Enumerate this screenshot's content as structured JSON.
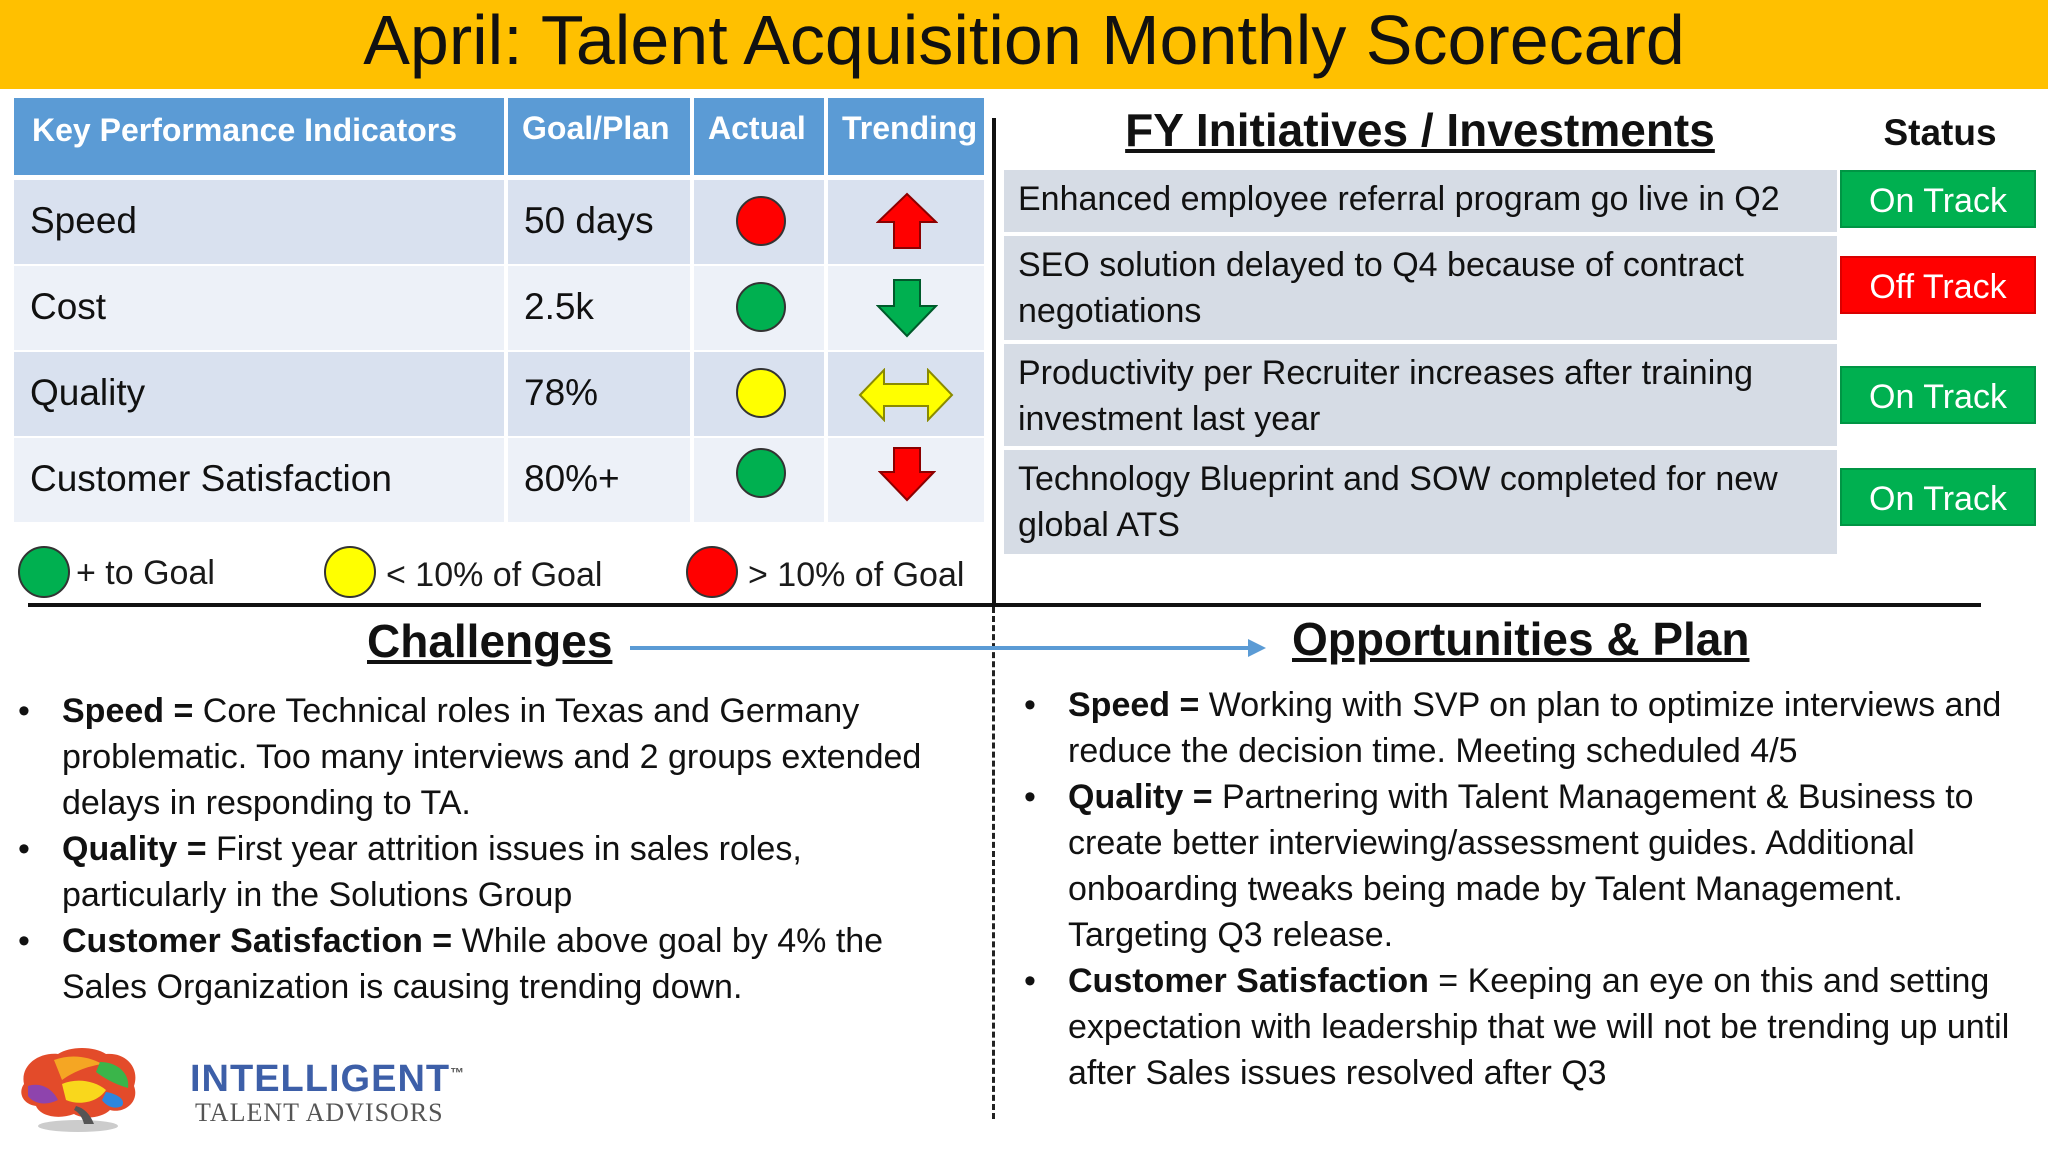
{
  "title": "April: Talent Acquisition Monthly Scorecard",
  "colors": {
    "title_bg": "#ffc000",
    "header_blue": "#5b9bd5",
    "row_light": "#dae3f3",
    "on_track": "#00b050",
    "off_track": "#ff0000",
    "green": "#00b050",
    "yellow": "#ffff00",
    "red": "#ff0000"
  },
  "kpi": {
    "headers": {
      "indicator": "Key Performance Indicators",
      "goal": "Goal/Plan",
      "actual": "Actual",
      "trending": "Trending"
    },
    "rows": [
      {
        "name": "Speed",
        "goal": "50 days",
        "actual": "red",
        "trending": "up-arrow-icon"
      },
      {
        "name": "Cost",
        "goal": "2.5k",
        "actual": "green",
        "trending": "down-arrow-icon"
      },
      {
        "name": "Quality",
        "goal": "78%",
        "actual": "yellow",
        "trending": "left-right-arrow-icon"
      },
      {
        "name": "Customer Satisfaction",
        "goal": "80%+",
        "actual": "green",
        "trending": "down-arrow-icon"
      }
    ]
  },
  "legend": [
    {
      "color": "green",
      "label": "+ to Goal"
    },
    {
      "color": "yellow",
      "label": "< 10% of Goal"
    },
    {
      "color": "red",
      "label": "> 10% of Goal"
    }
  ],
  "initiatives": {
    "title": "FY Initiatives / Investments",
    "status_header": "Status",
    "items": [
      {
        "text": "Enhanced employee referral program go live in Q2",
        "status": "On Track"
      },
      {
        "text": "SEO solution delayed to Q4 because of contract negotiations",
        "status": "Off Track"
      },
      {
        "text": "Productivity per Recruiter increases after training investment last year",
        "status": "On Track"
      },
      {
        "text": "Technology Blueprint and SOW completed for new global ATS",
        "status": "On Track"
      }
    ]
  },
  "challenges": {
    "title": "Challenges",
    "items": [
      {
        "label": "Speed =",
        "text": " Core Technical roles in Texas and Germany problematic. Too many interviews and 2 groups extended delays in responding to TA."
      },
      {
        "label": "Quality =",
        "text": " First year attrition issues in sales roles, particularly in the Solutions Group"
      },
      {
        "label": "Customer Satisfaction =",
        "text": " While above goal by 4% the Sales Organization is causing trending down."
      }
    ]
  },
  "opportunities": {
    "title": "Opportunities & Plan",
    "items": [
      {
        "label": "Speed =",
        "text": " Working with SVP on plan to optimize interviews and reduce the decision time. Meeting scheduled 4/5"
      },
      {
        "label": "Quality =",
        "text": " Partnering with Talent Management & Business to create better interviewing/assessment guides. Additional onboarding tweaks being made by Talent Management. Targeting Q3 release."
      },
      {
        "label": "Customer Satisfaction",
        "text": " = Keeping an eye on this and setting expectation with leadership that we will not be trending up until after Sales issues resolved after Q3"
      }
    ]
  },
  "bullet_char": "•",
  "logo": {
    "name": "INTELLIGENT",
    "tm": "™",
    "tagline": "TALENT ADVISORS"
  }
}
